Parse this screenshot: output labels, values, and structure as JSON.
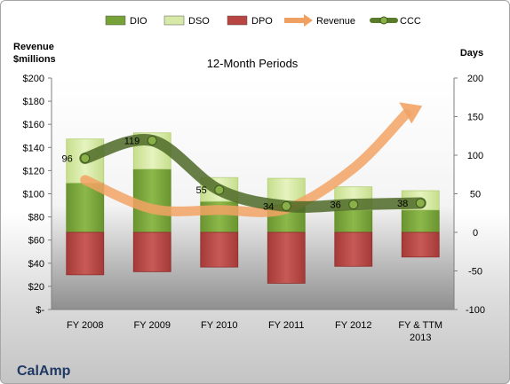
{
  "chart_data": {
    "type": "bar",
    "title": "12-Month Periods",
    "company": "CalAmp",
    "left_axis_label": [
      "Revenue",
      "$millions"
    ],
    "right_axis_label": "Days",
    "categories": [
      [
        "FY 2008"
      ],
      [
        "FY 2009"
      ],
      [
        "FY 2010"
      ],
      [
        "FY 2011"
      ],
      [
        "FY 2012"
      ],
      [
        "FY & TTM",
        "2013"
      ]
    ],
    "left_ylim": [
      0,
      200
    ],
    "right_ylim": [
      -100,
      200
    ],
    "left_ticks": [
      "$-",
      "$20",
      "$40",
      "$60",
      "$80",
      "$100",
      "$120",
      "$140",
      "$160",
      "$180",
      "$200"
    ],
    "right_ticks": [
      "-100",
      "-50",
      "0",
      "50",
      "100",
      "150",
      "200"
    ],
    "legend_position": "top",
    "legend": [
      {
        "name": "DIO",
        "kind": "bar",
        "color": "#76a238"
      },
      {
        "name": "DSO",
        "kind": "bar",
        "color": "#d6e9a6"
      },
      {
        "name": "DPO",
        "kind": "bar",
        "color": "#b84542"
      },
      {
        "name": "Revenue",
        "kind": "arrow",
        "color": "#f0a060"
      },
      {
        "name": "CCC",
        "kind": "line",
        "color": "#5a7a2c"
      }
    ],
    "series_days": {
      "DIO": [
        64,
        82,
        40,
        36,
        29,
        29
      ],
      "DSO": [
        57,
        47,
        31,
        34,
        30,
        25
      ],
      "DPO": [
        -55,
        -51,
        -45,
        -66,
        -44,
        -32
      ]
    },
    "revenue": [
      112,
      87,
      86,
      87,
      122,
      176
    ],
    "ccc": [
      96,
      119,
      55,
      34,
      36,
      38
    ],
    "ccc_labels": [
      "96",
      "119",
      "55",
      "34",
      "36",
      "38"
    ]
  }
}
